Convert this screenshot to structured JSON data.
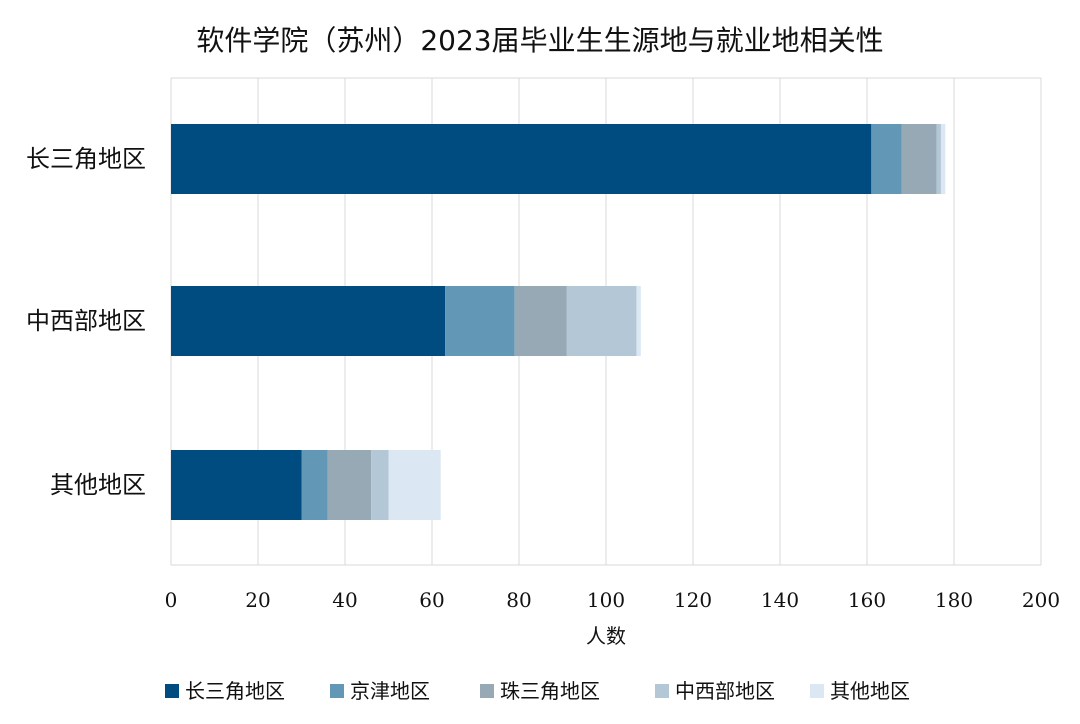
{
  "chart_data": {
    "type": "bar",
    "orientation": "horizontal",
    "stacked": true,
    "title": "软件学院（苏州）2023届毕业生生源地与就业地相关性",
    "xlabel": "人数",
    "ylabel": "",
    "xlim": [
      0,
      200
    ],
    "xticks": [
      0,
      20,
      40,
      60,
      80,
      100,
      120,
      140,
      160,
      180,
      200
    ],
    "grid": true,
    "legend_position": "bottom",
    "categories": [
      "长三角地区",
      "中西部地区",
      "其他地区"
    ],
    "series": [
      {
        "name": "长三角地区",
        "color": "#004c80",
        "values": [
          161,
          63,
          30
        ]
      },
      {
        "name": "京津地区",
        "color": "#6397b6",
        "values": [
          7,
          16,
          6
        ]
      },
      {
        "name": "珠三角地区",
        "color": "#97a9b4",
        "values": [
          8,
          12,
          10
        ]
      },
      {
        "name": "中西部地区",
        "color": "#b4c7d6",
        "values": [
          1,
          16,
          4
        ]
      },
      {
        "name": "其他地区",
        "color": "#dbe7f3",
        "values": [
          1,
          1,
          12
        ]
      }
    ]
  }
}
